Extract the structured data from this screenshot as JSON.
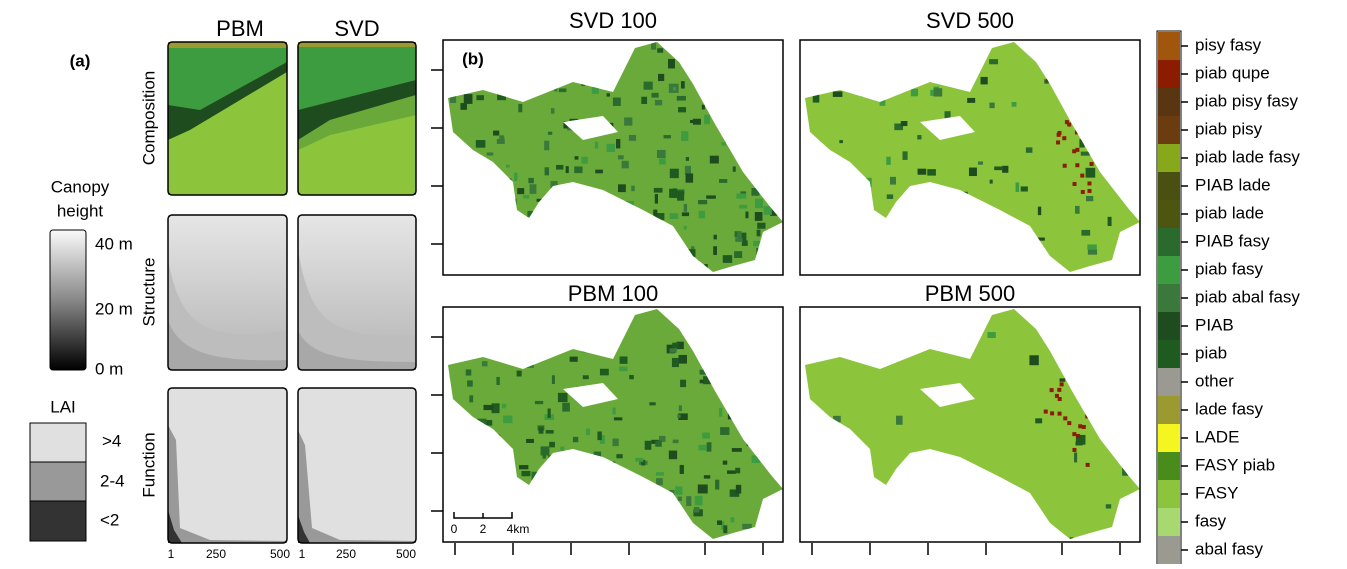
{
  "panel_a": {
    "label": "(a)",
    "columns": [
      "PBM",
      "SVD"
    ],
    "rows": [
      "Composition",
      "Structure",
      "Function"
    ],
    "canopy_height": {
      "title": [
        "Canopy",
        "height"
      ],
      "labels": [
        "40 m",
        "20 m",
        "0 m"
      ]
    },
    "lai": {
      "title": "LAI",
      "classes": [
        ">4",
        "2-4",
        "<2"
      ]
    },
    "x_tick_labels": [
      "1",
      "250",
      "500"
    ]
  },
  "panel_b": {
    "label": "(b)",
    "maps": [
      "SVD 100",
      "SVD 500",
      "PBM 100",
      "PBM 500"
    ],
    "scale_bar": [
      "0",
      "2",
      "4km"
    ]
  },
  "legend": [
    {
      "name": "pisy fasy",
      "color": "#a0560c"
    },
    {
      "name": "piab qupe",
      "color": "#8b1c00"
    },
    {
      "name": "piab pisy fasy",
      "color": "#5a3512"
    },
    {
      "name": "piab pisy",
      "color": "#6b3c10"
    },
    {
      "name": "piab lade fasy",
      "color": "#86a81a"
    },
    {
      "name": "PIAB lade",
      "color": "#4a5012"
    },
    {
      "name": "piab lade",
      "color": "#4c5610"
    },
    {
      "name": "PIAB fasy",
      "color": "#2a6a2c"
    },
    {
      "name": "piab fasy",
      "color": "#3e9c40"
    },
    {
      "name": "piab abal fasy",
      "color": "#3a783c"
    },
    {
      "name": "PIAB",
      "color": "#1e4c1e"
    },
    {
      "name": "piab",
      "color": "#1f5a20"
    },
    {
      "name": "other",
      "color": "#9a9a92"
    },
    {
      "name": "lade fasy",
      "color": "#9a9a30"
    },
    {
      "name": "LADE",
      "color": "#f5f520"
    },
    {
      "name": "FASY piab",
      "color": "#4a8c1c"
    },
    {
      "name": "FASY",
      "color": "#8cc43c"
    },
    {
      "name": "fasy",
      "color": "#a8d870"
    },
    {
      "name": "abal fasy",
      "color": "#9a9a90"
    }
  ]
}
